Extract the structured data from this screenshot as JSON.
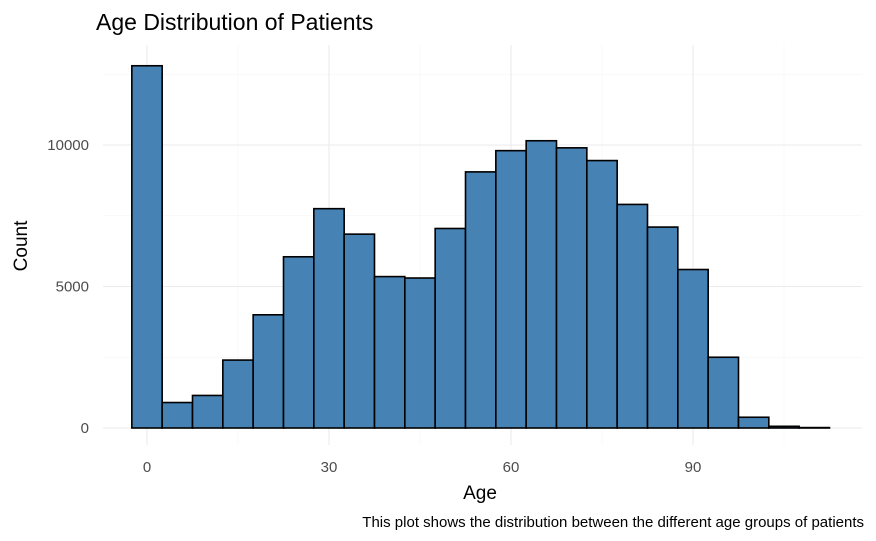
{
  "chart_data": {
    "type": "bar",
    "title": "Age Distribution of Patients",
    "xlabel": "Age",
    "ylabel": "Count",
    "caption": "This plot shows the distribution between the different age groups of patients",
    "bin_width": 5,
    "bin_centers": [
      0,
      5,
      10,
      15,
      20,
      25,
      30,
      35,
      40,
      45,
      50,
      55,
      60,
      65,
      70,
      75,
      80,
      85,
      90,
      95,
      100,
      105,
      110
    ],
    "values": [
      12800,
      900,
      1150,
      2400,
      4000,
      6050,
      7750,
      6850,
      5350,
      5300,
      7050,
      9050,
      9800,
      10150,
      9900,
      9450,
      7900,
      7100,
      5600,
      2500,
      380,
      60,
      15
    ],
    "xlim": [
      -5,
      117
    ],
    "ylim": [
      0,
      14000
    ],
    "x_ticks": [
      0,
      30,
      60,
      90
    ],
    "x_tick_labels": [
      "0",
      "30",
      "60",
      "90"
    ],
    "y_ticks": [
      0,
      5000,
      10000
    ],
    "y_tick_labels": [
      "0",
      "5000",
      "10000"
    ],
    "bar_fill": "#4682b4",
    "bar_stroke": "#000000",
    "grid": true,
    "legend": "none"
  }
}
